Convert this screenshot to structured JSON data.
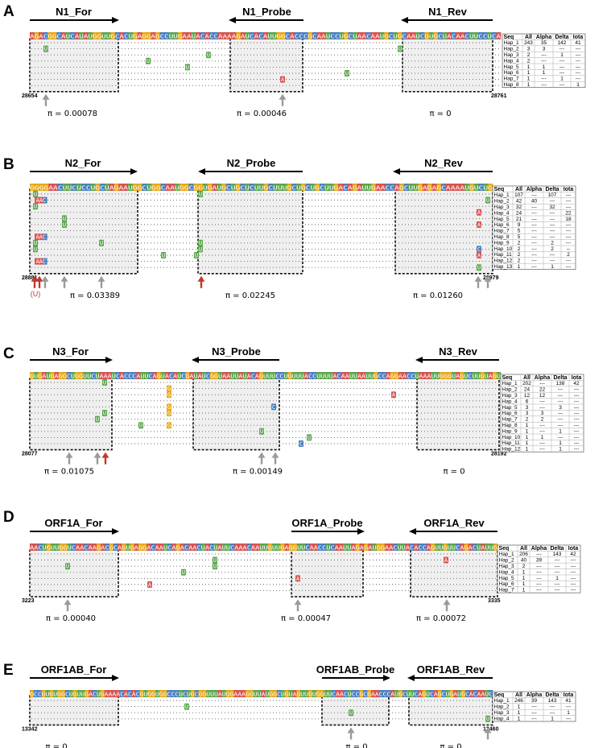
{
  "colors": {
    "A": "#d9534f",
    "C": "#4a7fc1",
    "G": "#e6a817",
    "U": "#5aa64c",
    "box_fill": "#efefef",
    "arrow_gray": "#9a9a9a",
    "arrow_red": "#c0392b"
  },
  "panels": [
    {
      "letter": "A",
      "y": 0,
      "start": "28654",
      "end": "28761",
      "seqX": 37,
      "seqEnd": 622,
      "seqY": 45,
      "seq": "AGACGGCAUCAUAUGGUUGCACUGAGGAGCCUUGAAUACACCAAAAGAUCACAUUGGCACCCGCAAUCCUGCUAACAAUGCUGCAAUCGUGCUACAACUUCCUCA",
      "primers": [
        {
          "name": "N1_For",
          "x1": 37,
          "x2": 146,
          "dir": "right",
          "box": [
            37,
            47,
            147,
            116
          ]
        },
        {
          "name": "N1_Probe",
          "x1": 286,
          "x2": 377,
          "dir": "left",
          "box": [
            286,
            47,
            376,
            116
          ]
        },
        {
          "name": "N1_Rev",
          "x1": 500,
          "x2": 612,
          "dir": "left",
          "box": [
            500,
            47,
            612,
            116
          ]
        }
      ],
      "nrows": 8,
      "muts": [
        {
          "r": 1,
          "x": 57,
          "b": "U"
        },
        {
          "r": 2,
          "x": 259,
          "b": "U"
        },
        {
          "r": 3,
          "x": 184,
          "b": "U"
        },
        {
          "r": 4,
          "x": 233,
          "b": "U"
        },
        {
          "r": 5,
          "x": 431,
          "b": "U"
        },
        {
          "r": 6,
          "x": 351,
          "b": "A"
        },
        {
          "r": 1,
          "x": 497,
          "b": "U"
        }
      ],
      "arrows": [
        {
          "x": 57,
          "c": "gray"
        },
        {
          "x": 351,
          "c": "gray"
        }
      ],
      "pis": [
        {
          "x": 90,
          "t": "π = 0.00078"
        },
        {
          "x": 325,
          "t": "π = 0.00046"
        },
        {
          "x": 547,
          "t": "π = 0"
        }
      ],
      "table": {
        "x": 624,
        "y": 42,
        "rows": [
          [
            "Seq",
            "All",
            "Alpha",
            "Delta",
            "Iota"
          ],
          [
            "Hap_1",
            "243",
            "35",
            "142",
            "41"
          ],
          [
            "Hap_2",
            "3",
            "3",
            "---",
            "---"
          ],
          [
            "Hap_3",
            "2",
            "---",
            "1",
            "---"
          ],
          [
            "Hap_4",
            "2",
            "---",
            "---",
            "---"
          ],
          [
            "Hap_5",
            "1",
            "1",
            "---",
            "---"
          ],
          [
            "Hap_6",
            "1",
            "1",
            "---",
            "---"
          ],
          [
            "Hap_7",
            "1",
            "---",
            "1",
            "---"
          ],
          [
            "Hap_8",
            "1",
            "---",
            "---",
            "1"
          ]
        ]
      }
    },
    {
      "letter": "B",
      "y": 190,
      "start": "28881",
      "end": "28979",
      "seqX": 37,
      "seqEnd": 612,
      "seqY": 233,
      "seq": "GGGGAACUUCUCCUGCUAGAAUGGCUGGCAAUGGCGGUGAUGCUGCUCUUGCUUUGCUGCUGCUUGACAGAUUGAACCAGCUUGAGAGCAAAAUGUCUG",
      "primers": [
        {
          "name": "N2_For",
          "x1": 37,
          "x2": 169,
          "dir": "right",
          "box": [
            37,
            235,
            171,
            346
          ]
        },
        {
          "name": "N2_Probe",
          "x1": 248,
          "x2": 376,
          "dir": "left",
          "box": [
            246,
            235,
            376,
            346
          ]
        },
        {
          "name": "N2_Rev",
          "x1": 490,
          "x2": 612,
          "dir": "left",
          "box": [
            491,
            235,
            612,
            346
          ]
        }
      ],
      "nrows": 13,
      "muts": [
        {
          "r": 0,
          "x": 44,
          "b": "U"
        },
        {
          "r": 1,
          "x": 50,
          "b": "AAC"
        },
        {
          "r": 2,
          "x": 44,
          "b": "U"
        },
        {
          "r": 4,
          "x": 80,
          "b": "U"
        },
        {
          "r": 5,
          "x": 80,
          "b": "U"
        },
        {
          "r": 7,
          "x": 50,
          "b": "AAC"
        },
        {
          "r": 8,
          "x": 44,
          "b": "U"
        },
        {
          "r": 8,
          "x": 126,
          "b": "U"
        },
        {
          "r": 9,
          "x": 44,
          "b": "U"
        },
        {
          "r": 11,
          "x": 50,
          "b": "AAC"
        },
        {
          "r": 10,
          "x": 203,
          "b": "U"
        },
        {
          "r": 0,
          "x": 249,
          "b": "U"
        },
        {
          "r": 8,
          "x": 249,
          "b": "U"
        },
        {
          "r": 9,
          "x": 249,
          "b": "U"
        },
        {
          "r": 10,
          "x": 244,
          "b": "U"
        },
        {
          "r": 1,
          "x": 606,
          "b": "U"
        },
        {
          "r": 3,
          "x": 595,
          "b": "A"
        },
        {
          "r": 5,
          "x": 595,
          "b": "A"
        },
        {
          "r": 9,
          "x": 595,
          "b": "C"
        },
        {
          "r": 10,
          "x": 595,
          "b": "A"
        },
        {
          "r": 12,
          "x": 595,
          "b": "U"
        }
      ],
      "arrows": [
        {
          "x": 43,
          "c": "red"
        },
        {
          "x": 49,
          "c": "red"
        },
        {
          "x": 56,
          "c": "gray"
        },
        {
          "x": 80,
          "c": "gray"
        },
        {
          "x": 126,
          "c": "gray"
        },
        {
          "x": 250,
          "c": "red"
        },
        {
          "x": 594,
          "c": "gray"
        },
        {
          "x": 606,
          "c": "gray"
        }
      ],
      "note": "(U)",
      "pis": [
        {
          "x": 118,
          "t": "π = 0.03389"
        },
        {
          "x": 311,
          "t": "π = 0.02245"
        },
        {
          "x": 544,
          "t": "π = 0.01260"
        }
      ],
      "table": {
        "x": 612,
        "y": 231,
        "rows": [
          [
            "Seq",
            "All",
            "Alpha",
            "Delta",
            "Iota"
          ],
          [
            "Hap_1",
            "107",
            "---",
            "107",
            "---"
          ],
          [
            "Hap_2",
            "42",
            "40",
            "---",
            "---"
          ],
          [
            "Hap_3",
            "32",
            "---",
            "32",
            "---"
          ],
          [
            "Hap_4",
            "24",
            "---",
            "---",
            "22"
          ],
          [
            "Hap_5",
            "21",
            "---",
            "---",
            "18"
          ],
          [
            "Hap_6",
            "9",
            "---",
            "---",
            "---"
          ],
          [
            "Hap_7",
            "5",
            "---",
            "---",
            "---"
          ],
          [
            "Hap_8",
            "5",
            "---",
            "---",
            "---"
          ],
          [
            "Hap_9",
            "2",
            "---",
            "2",
            "---"
          ],
          [
            "Hap_10",
            "2",
            "---",
            "2",
            "--"
          ],
          [
            "Hap_11",
            "2",
            "---",
            "---",
            "2"
          ],
          [
            "Hap_12",
            "2",
            "---",
            "---",
            "---"
          ],
          [
            "Hap_13",
            "1",
            "---",
            "1",
            "---"
          ]
        ]
      }
    },
    {
      "letter": "C",
      "y": 425,
      "start": "28077",
      "end": "28192",
      "seqX": 37,
      "seqEnd": 622,
      "seqY": 467,
      "seq": "GUGAUGAGGCUGGUUCUAAAUCACCCAUUCAGUACAUCGAUAUCGGUAAUUAUACAGUUUCCUGUUUACCUUUUACAAUUAAUUGCCAGGAACCUAAAUUGGGUAGUCUUGUAGU",
      "primers": [
        {
          "name": "N3_For",
          "x1": 37,
          "x2": 138,
          "dir": "right",
          "box": [
            37,
            469,
            139,
            553
          ]
        },
        {
          "name": "N3_Probe",
          "x1": 240,
          "x2": 347,
          "dir": "left",
          "box": [
            240,
            469,
            347,
            553
          ]
        },
        {
          "name": "N3_Rev",
          "x1": 518,
          "x2": 620,
          "dir": "left",
          "box": [
            518,
            469,
            620,
            553
          ]
        }
      ],
      "nrows": 11,
      "muts": [
        {
          "r": 0,
          "x": 130,
          "b": "U"
        },
        {
          "r": 1,
          "x": 210,
          "b": "G"
        },
        {
          "r": 2,
          "x": 210,
          "b": "G"
        },
        {
          "r": 2,
          "x": 489,
          "b": "A"
        },
        {
          "r": 4,
          "x": 210,
          "b": "G"
        },
        {
          "r": 4,
          "x": 340,
          "b": "C"
        },
        {
          "r": 5,
          "x": 130,
          "b": "U"
        },
        {
          "r": 5,
          "x": 210,
          "b": "G"
        },
        {
          "r": 6,
          "x": 121,
          "b": "U"
        },
        {
          "r": 7,
          "x": 175,
          "b": "U"
        },
        {
          "r": 7,
          "x": 210,
          "b": "G"
        },
        {
          "r": 8,
          "x": 325,
          "b": "U"
        },
        {
          "r": 9,
          "x": 384,
          "b": "U"
        },
        {
          "r": 10,
          "x": 374,
          "b": "C"
        }
      ],
      "arrows": [
        {
          "x": 86,
          "c": "gray"
        },
        {
          "x": 121,
          "c": "gray"
        },
        {
          "x": 131,
          "c": "red"
        },
        {
          "x": 325,
          "c": "gray"
        },
        {
          "x": 342,
          "c": "gray"
        }
      ],
      "pis": [
        {
          "x": 86,
          "t": "π = 0.01075"
        },
        {
          "x": 320,
          "t": "π = 0.00149"
        },
        {
          "x": 564,
          "t": "π = 0"
        }
      ],
      "table": {
        "x": 622,
        "y": 465,
        "rows": [
          [
            "Seq",
            "All",
            "Alpha",
            "Delta",
            "Iota"
          ],
          [
            "Hap_1",
            "202",
            "---",
            "138",
            "42"
          ],
          [
            "Hap_2",
            "24",
            "22",
            "---",
            "---"
          ],
          [
            "Hap_3",
            "12",
            "12",
            "---",
            "---"
          ],
          [
            "Hap_4",
            "6",
            "---",
            "---",
            "---"
          ],
          [
            "Hap_5",
            "3",
            "---",
            "3",
            "---"
          ],
          [
            "Hap_6",
            "3",
            "3",
            "---",
            "---"
          ],
          [
            "Hap_7",
            "2",
            "2",
            "---",
            "---"
          ],
          [
            "Hap_8",
            "1",
            "---",
            "---",
            "---"
          ],
          [
            "Hap_9",
            "1",
            "---",
            "1",
            "---"
          ],
          [
            "Hap_10",
            "1",
            "1",
            "---",
            "---"
          ],
          [
            "Hap_11",
            "1",
            "---",
            "1",
            "---"
          ],
          [
            "Hap_12",
            "1",
            "---",
            "1",
            "---"
          ]
        ]
      }
    },
    {
      "letter": "D",
      "y": 628,
      "start": "3223",
      "end": "3335",
      "seqX": 37,
      "seqEnd": 618,
      "seqY": 680,
      "seq": "AACUGUUGGUCAACAAGACGCAGUGAGGACAAUCAGACAACUACUAUUCAAACAAUUGUUGAGGUUCAACCUCAAUUAGAGAUGGAACUUACACCAGUUGUUCAGACUAUUG",
      "primers": [
        {
          "name": "ORF1A_For",
          "x1": 37,
          "x2": 146,
          "dir": "right",
          "box": [
            37,
            682,
            147,
            734
          ]
        },
        {
          "name": "ORF1A_Probe",
          "x1": 362,
          "x2": 451,
          "dir": "right",
          "box": [
            362,
            682,
            451,
            734
          ]
        },
        {
          "name": "ORF1A_Rev",
          "x1": 510,
          "x2": 618,
          "dir": "left",
          "box": [
            510,
            682,
            618,
            734
          ]
        }
      ],
      "nrows": 7,
      "muts": [
        {
          "r": 1,
          "x": 267,
          "b": "U"
        },
        {
          "r": 2,
          "x": 267,
          "b": "U"
        },
        {
          "r": 2,
          "x": 84,
          "b": "U"
        },
        {
          "r": 3,
          "x": 228,
          "b": "U"
        },
        {
          "r": 4,
          "x": 370,
          "b": "A"
        },
        {
          "r": 5,
          "x": 186,
          "b": "A"
        },
        {
          "r": 1,
          "x": 554,
          "b": "A"
        }
      ],
      "arrows": [
        {
          "x": 84,
          "c": "gray"
        },
        {
          "x": 370,
          "c": "gray"
        },
        {
          "x": 555,
          "c": "gray"
        }
      ],
      "pis": [
        {
          "x": 88,
          "t": "π = 0.00040"
        },
        {
          "x": 380,
          "t": "π = 0.00047"
        },
        {
          "x": 548,
          "t": "π = 0.00072"
        }
      ],
      "table": {
        "x": 618,
        "y": 677,
        "rows": [
          [
            "Seq",
            "All",
            "Alpha",
            "Delta",
            "Iota"
          ],
          [
            "Hap_1",
            "206",
            "---",
            "143",
            "42"
          ],
          [
            "Hap_2",
            "40",
            "39",
            "---",
            "---"
          ],
          [
            "Hap_3",
            "2",
            "---",
            "---",
            "---"
          ],
          [
            "Hap_4",
            "1",
            "---",
            "---",
            "---"
          ],
          [
            "Hap_5",
            "1",
            "---",
            "1",
            "---"
          ],
          [
            "Hap_6",
            "1",
            "---",
            "---",
            "---"
          ],
          [
            "Hap_7",
            "1",
            "---",
            "---",
            "---"
          ]
        ]
      }
    },
    {
      "letter": "E",
      "y": 818,
      "start": "13342",
      "end": "13460",
      "seqX": 37,
      "seqEnd": 612,
      "seqY": 862,
      "seq": "GCCGUGUGGCUGUUGACUGAAAACACACGUGGUGGCCCUCUGCGGUUUAUGGAAAGGUUAUGGCUGUAGUUGUGGUUCAACUCCGCGAACCCAUGCUUCAGUCAGCUGAUGCACAAUC",
      "primers": [
        {
          "name": "ORF1AB_For",
          "x1": 37,
          "x2": 146,
          "dir": "right",
          "box": [
            37,
            864,
            147,
            902
          ]
        },
        {
          "name": "ORF1AB_Probe",
          "x1": 400,
          "x2": 483,
          "dir": "right",
          "box": [
            400,
            864,
            483,
            902
          ]
        },
        {
          "name": "ORF1AB_Rev",
          "x1": 508,
          "x2": 612,
          "dir": "left",
          "box": [
            508,
            864,
            612,
            902
          ]
        }
      ],
      "nrows": 4,
      "muts": [
        {
          "r": 1,
          "x": 232,
          "b": "U"
        },
        {
          "r": 2,
          "x": 436,
          "b": "U"
        },
        {
          "r": 3,
          "x": 606,
          "b": "U"
        }
      ],
      "arrows": [
        {
          "x": 436,
          "c": "gray"
        },
        {
          "x": 606,
          "c": "gray"
        }
      ],
      "pis": [
        {
          "x": 70,
          "t": "π = 0"
        },
        {
          "x": 443,
          "t": "π = 0"
        },
        {
          "x": 560,
          "t": "π = 0"
        }
      ],
      "table": {
        "x": 612,
        "y": 859,
        "rows": [
          [
            "Seq",
            "All",
            "Alpha",
            "Delta",
            "Iota"
          ],
          [
            "Hap_1",
            "246",
            "39",
            "143",
            "41"
          ],
          [
            "Hap_2",
            "1",
            "---",
            "---",
            "---"
          ],
          [
            "Hap_3",
            "1",
            "---",
            "---",
            "1"
          ],
          [
            "Hap_4",
            "1",
            "---",
            "1",
            "---"
          ]
        ]
      }
    }
  ]
}
